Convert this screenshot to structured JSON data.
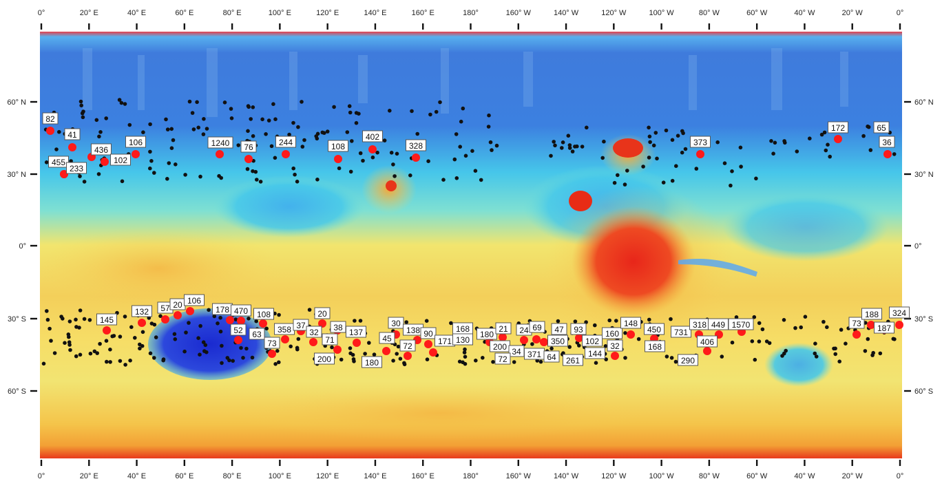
{
  "map": {
    "colors": {
      "low": "#2437d6",
      "mid_low": "#3aa0ee",
      "mid": "#45d6e6",
      "mid_high": "#f5e36a",
      "high": "#f0a23a",
      "peak": "#e62b12",
      "red_marker": "#ff1a1a",
      "black_marker": "#111111"
    },
    "top_axis": [
      "0°",
      "20° E",
      "40° E",
      "60° E",
      "80° E",
      "100° E",
      "120° E",
      "140° E",
      "160° E",
      "180°",
      "160° W",
      "140° W",
      "120° W",
      "100° W",
      "80° W",
      "60° W",
      "40° W",
      "20° W",
      "0°"
    ],
    "bottom_axis": [
      "0°",
      "20° E",
      "40° E",
      "60° E",
      "80° E",
      "100° E",
      "120° E",
      "140° E",
      "160° E",
      "180°",
      "160° W",
      "140° W",
      "120° W",
      "100° W",
      "80° W",
      "60° W",
      "40° W",
      "20° W",
      "0°"
    ],
    "left_axis": [
      "60° N",
      "30° N",
      "0°",
      "30° S",
      "60° S"
    ],
    "right_axis": [
      "60° N",
      "30° N",
      "0°",
      "30° S",
      "60° S"
    ],
    "red_sites": [
      {
        "label": "82"
      },
      {
        "label": "41"
      },
      {
        "label": "436"
      },
      {
        "label": "102"
      },
      {
        "label": "455"
      },
      {
        "label": "233"
      },
      {
        "label": "106"
      },
      {
        "label": "1240"
      },
      {
        "label": "76"
      },
      {
        "label": "244"
      },
      {
        "label": "108"
      },
      {
        "label": "402"
      },
      {
        "label": "328"
      },
      {
        "label": "373"
      },
      {
        "label": "172"
      },
      {
        "label": "65"
      },
      {
        "label": "36"
      },
      {
        "label": "145"
      },
      {
        "label": "132"
      },
      {
        "label": "57"
      },
      {
        "label": "20"
      },
      {
        "label": "106"
      },
      {
        "label": "178"
      },
      {
        "label": "470"
      },
      {
        "label": "52"
      },
      {
        "label": "63"
      },
      {
        "label": "108"
      },
      {
        "label": "358"
      },
      {
        "label": "37"
      },
      {
        "label": "73"
      },
      {
        "label": "20"
      },
      {
        "label": "32"
      },
      {
        "label": "38"
      },
      {
        "label": "71"
      },
      {
        "label": "137"
      },
      {
        "label": "200"
      },
      {
        "label": "30"
      },
      {
        "label": "138"
      },
      {
        "label": "90"
      },
      {
        "label": "45"
      },
      {
        "label": "72"
      },
      {
        "label": "171"
      },
      {
        "label": "168"
      },
      {
        "label": "130"
      },
      {
        "label": "180"
      },
      {
        "label": "180"
      },
      {
        "label": "21"
      },
      {
        "label": "200"
      },
      {
        "label": "24"
      },
      {
        "label": "69"
      },
      {
        "label": "34"
      },
      {
        "label": "72"
      },
      {
        "label": "47"
      },
      {
        "label": "350"
      },
      {
        "label": "371"
      },
      {
        "label": "64"
      },
      {
        "label": "93"
      },
      {
        "label": "102"
      },
      {
        "label": "261"
      },
      {
        "label": "160"
      },
      {
        "label": "144"
      },
      {
        "label": "32"
      },
      {
        "label": "148"
      },
      {
        "label": "450"
      },
      {
        "label": "168"
      },
      {
        "label": "731"
      },
      {
        "label": "318"
      },
      {
        "label": "449"
      },
      {
        "label": "1570"
      },
      {
        "label": "406"
      },
      {
        "label": "290"
      },
      {
        "label": "73"
      },
      {
        "label": "188"
      },
      {
        "label": "187"
      },
      {
        "label": "324"
      }
    ]
  }
}
